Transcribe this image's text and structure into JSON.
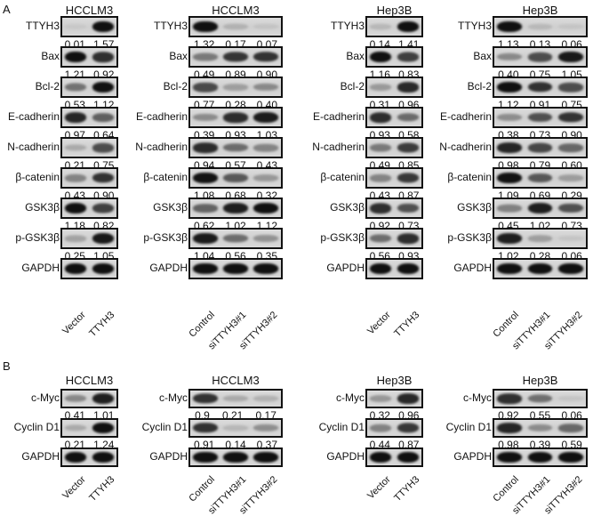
{
  "figure": {
    "panels": [
      {
        "letter": "A",
        "groups": [
          {
            "title": "HCCLM3",
            "lanes": [
              "Vector",
              "TTYH3"
            ],
            "rows": [
              {
                "protein": "TTYH3",
                "values": [
                  "0.01",
                  "1.57"
                ]
              },
              {
                "protein": "Bax",
                "values": [
                  "1.21",
                  "0.92"
                ]
              },
              {
                "protein": "Bcl-2",
                "values": [
                  "0.53",
                  "1.12"
                ]
              },
              {
                "protein": "E-cadherin",
                "values": [
                  "0.97",
                  "0.64"
                ]
              },
              {
                "protein": "N-cadherin",
                "values": [
                  "0.21",
                  "0.75"
                ]
              },
              {
                "protein": "β-catenin",
                "values": [
                  "0.43",
                  "0.90"
                ]
              },
              {
                "protein": "GSK3β",
                "values": [
                  "1.18",
                  "0.82"
                ]
              },
              {
                "protein": "p-GSK3β",
                "values": [
                  "0.25",
                  "1.05"
                ]
              },
              {
                "protein": "GAPDH",
                "values": []
              }
            ]
          },
          {
            "title": "HCCLM3",
            "lanes": [
              "Control",
              "siTTYH3#1",
              "siTTYH3#2"
            ],
            "rows": [
              {
                "protein": "TTYH3",
                "values": [
                  "1.32",
                  "0.17",
                  "0.07"
                ]
              },
              {
                "protein": "Bax",
                "values": [
                  "0.49",
                  "0.89",
                  "0.90"
                ]
              },
              {
                "protein": "Bcl-2",
                "values": [
                  "0.77",
                  "0.28",
                  "0.40"
                ]
              },
              {
                "protein": "E-cadherin",
                "values": [
                  "0.39",
                  "0.93",
                  "1.03"
                ]
              },
              {
                "protein": "N-cadherin",
                "values": [
                  "0.94",
                  "0.57",
                  "0.43"
                ]
              },
              {
                "protein": "β-catenin",
                "values": [
                  "1.08",
                  "0.68",
                  "0.32"
                ]
              },
              {
                "protein": "GSK3β",
                "values": [
                  "0.62",
                  "1.02",
                  "1.12"
                ]
              },
              {
                "protein": "p-GSK3β",
                "values": [
                  "1.04",
                  "0.56",
                  "0.35"
                ]
              },
              {
                "protein": "GAPDH",
                "values": []
              }
            ]
          },
          {
            "title": "Hep3B",
            "lanes": [
              "Vector",
              "TTYH3"
            ],
            "rows": [
              {
                "protein": "TTYH3",
                "values": [
                  "0.14",
                  "1.41"
                ]
              },
              {
                "protein": "Bax",
                "values": [
                  "1.16",
                  "0.83"
                ]
              },
              {
                "protein": "Bcl-2",
                "values": [
                  "0.31",
                  "0.96"
                ]
              },
              {
                "protein": "E-cadherin",
                "values": [
                  "0.93",
                  "0.58"
                ]
              },
              {
                "protein": "N-cadherin",
                "values": [
                  "0.49",
                  "0.85"
                ]
              },
              {
                "protein": "β-catenin",
                "values": [
                  "0.43",
                  "0.87"
                ]
              },
              {
                "protein": "GSK3β",
                "values": [
                  "0.92",
                  "0.73"
                ]
              },
              {
                "protein": "p-GSK3β",
                "values": [
                  "0.56",
                  "0.93"
                ]
              },
              {
                "protein": "GAPDH",
                "values": []
              }
            ]
          },
          {
            "title": "Hep3B",
            "lanes": [
              "Control",
              "siTTYH3#1",
              "siTTYH3#2"
            ],
            "rows": [
              {
                "protein": "TTYH3",
                "values": [
                  "1.13",
                  "0.13",
                  "0.06"
                ]
              },
              {
                "protein": "Bax",
                "values": [
                  "0.40",
                  "0.75",
                  "1.05"
                ]
              },
              {
                "protein": "Bcl-2",
                "values": [
                  "1.12",
                  "0.91",
                  "0.75"
                ]
              },
              {
                "protein": "E-cadherin",
                "values": [
                  "0.38",
                  "0.73",
                  "0.90"
                ]
              },
              {
                "protein": "N-cadherin",
                "values": [
                  "0.98",
                  "0.79",
                  "0.60"
                ]
              },
              {
                "protein": "β-catenin",
                "values": [
                  "1.09",
                  "0.69",
                  "0.29"
                ]
              },
              {
                "protein": "GSK3β",
                "values": [
                  "0.45",
                  "1.02",
                  "0.73"
                ]
              },
              {
                "protein": "p-GSK3β",
                "values": [
                  "1.02",
                  "0.28",
                  "0.06"
                ]
              },
              {
                "protein": "GAPDH",
                "values": []
              }
            ]
          }
        ]
      },
      {
        "letter": "B",
        "groups": [
          {
            "title": "HCCLM3",
            "lanes": [
              "Vector",
              "TTYH3"
            ],
            "rows": [
              {
                "protein": "c-Myc",
                "values": [
                  "0.41",
                  "1.01"
                ]
              },
              {
                "protein": "Cyclin D1",
                "values": [
                  "0.21",
                  "1.24"
                ]
              },
              {
                "protein": "GAPDH",
                "values": []
              }
            ]
          },
          {
            "title": "HCCLM3",
            "lanes": [
              "Control",
              "siTTYH3#1",
              "siTTYH3#2"
            ],
            "rows": [
              {
                "protein": "c-Myc",
                "values": [
                  "0.9",
                  "0.21",
                  "0.17"
                ]
              },
              {
                "protein": "Cyclin D1",
                "values": [
                  "0.91",
                  "0.14",
                  "0.37"
                ]
              },
              {
                "protein": "GAPDH",
                "values": []
              }
            ]
          },
          {
            "title": "Hep3B",
            "lanes": [
              "Vector",
              "TTYH3"
            ],
            "rows": [
              {
                "protein": "c-Myc",
                "values": [
                  "0.32",
                  "0.96"
                ]
              },
              {
                "protein": "Cyclin D1",
                "values": [
                  "0.44",
                  "0.87"
                ]
              },
              {
                "protein": "GAPDH",
                "values": []
              }
            ]
          },
          {
            "title": "Hep3B",
            "lanes": [
              "Control",
              "siTTYH3#1",
              "siTTYH3#2"
            ],
            "rows": [
              {
                "protein": "c-Myc",
                "values": [
                  "0.92",
                  "0.55",
                  "0.06"
                ]
              },
              {
                "protein": "Cyclin D1",
                "values": [
                  "0.98",
                  "0.39",
                  "0.59"
                ]
              },
              {
                "protein": "GAPDH",
                "values": []
              }
            ]
          }
        ]
      }
    ]
  }
}
